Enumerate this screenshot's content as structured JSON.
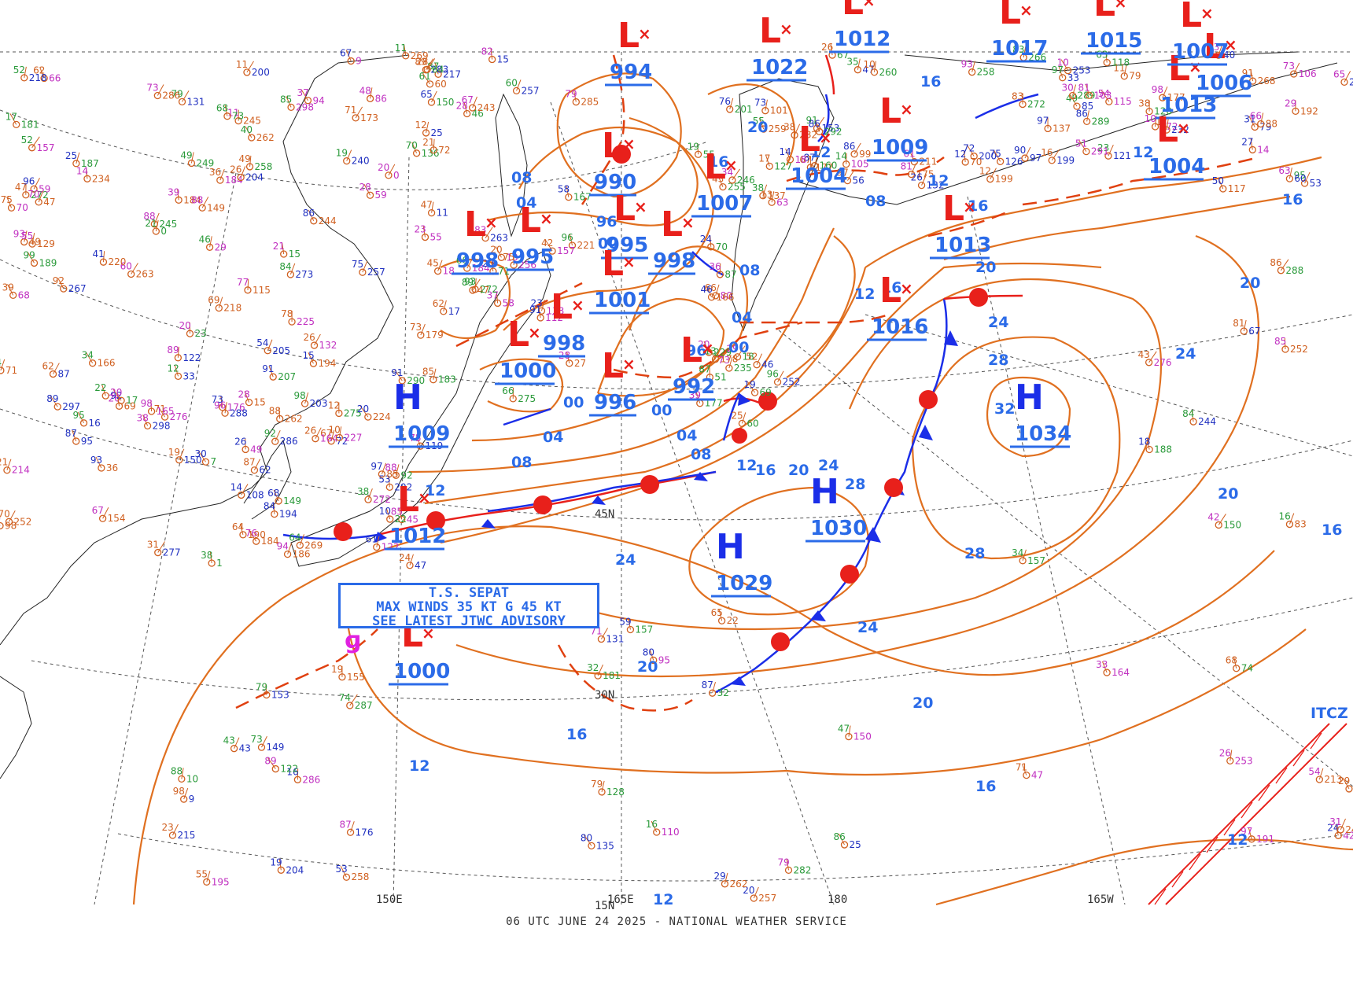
{
  "footer": "06 UTC JUNE 24 2025 - NATIONAL WEATHER SERVICE",
  "advisory": {
    "line1": "T.S. SEPAT",
    "line2": "MAX WINDS 35 KT G 45 KT",
    "line3": "SEE LATEST JTWC ADVISORY"
  },
  "itcz_label": "ITCZ",
  "longitude_labels": [
    "150E",
    "165E",
    "180",
    "165W"
  ],
  "latitude_labels": [
    "45N",
    "30N",
    "15N"
  ],
  "systems": [
    {
      "type": "H",
      "pressure": "1009"
    },
    {
      "type": "H",
      "pressure": "1029"
    },
    {
      "type": "H",
      "pressure": "1030"
    },
    {
      "type": "H",
      "pressure": "1034"
    },
    {
      "type": "L",
      "pressure": "1012"
    },
    {
      "type": "L",
      "pressure": "994"
    },
    {
      "type": "L",
      "pressure": "990"
    },
    {
      "type": "L",
      "pressure": "998"
    },
    {
      "type": "L",
      "pressure": "995"
    },
    {
      "type": "L",
      "pressure": "995"
    },
    {
      "type": "L",
      "pressure": "998"
    },
    {
      "type": "L",
      "pressure": "996"
    },
    {
      "type": "L",
      "pressure": "992"
    },
    {
      "type": "L",
      "pressure": "1001"
    },
    {
      "type": "L",
      "pressure": "1000"
    },
    {
      "type": "L",
      "pressure": "998"
    },
    {
      "type": "L",
      "pressure": "1007"
    },
    {
      "type": "L",
      "pressure": "1004"
    },
    {
      "type": "L",
      "pressure": "1009"
    },
    {
      "type": "L",
      "pressure": "1013"
    },
    {
      "type": "L",
      "pressure": "1016"
    },
    {
      "type": "L",
      "pressure": "1000"
    },
    {
      "type": "L",
      "pressure": "1022"
    },
    {
      "type": "L",
      "pressure": "1013"
    },
    {
      "type": "L",
      "pressure": "1004"
    },
    {
      "type": "L",
      "pressure": "1006"
    },
    {
      "type": "L",
      "pressure": "1007"
    },
    {
      "type": "L",
      "pressure": "1017"
    },
    {
      "type": "L",
      "pressure": "1015"
    },
    {
      "type": "L",
      "pressure": "1012"
    }
  ],
  "isobar_labels": [
    "04",
    "08",
    "12",
    "16",
    "20",
    "24",
    "28",
    "32",
    "96",
    "00"
  ],
  "colors": {
    "isobar": "#e07020",
    "cold_front": "#1b2ee8",
    "warm_front": "#e8201b",
    "label_blue": "#2b6be8",
    "high": "#1b2ee8",
    "low": "#e8201b",
    "itcz": "#e8201b"
  }
}
